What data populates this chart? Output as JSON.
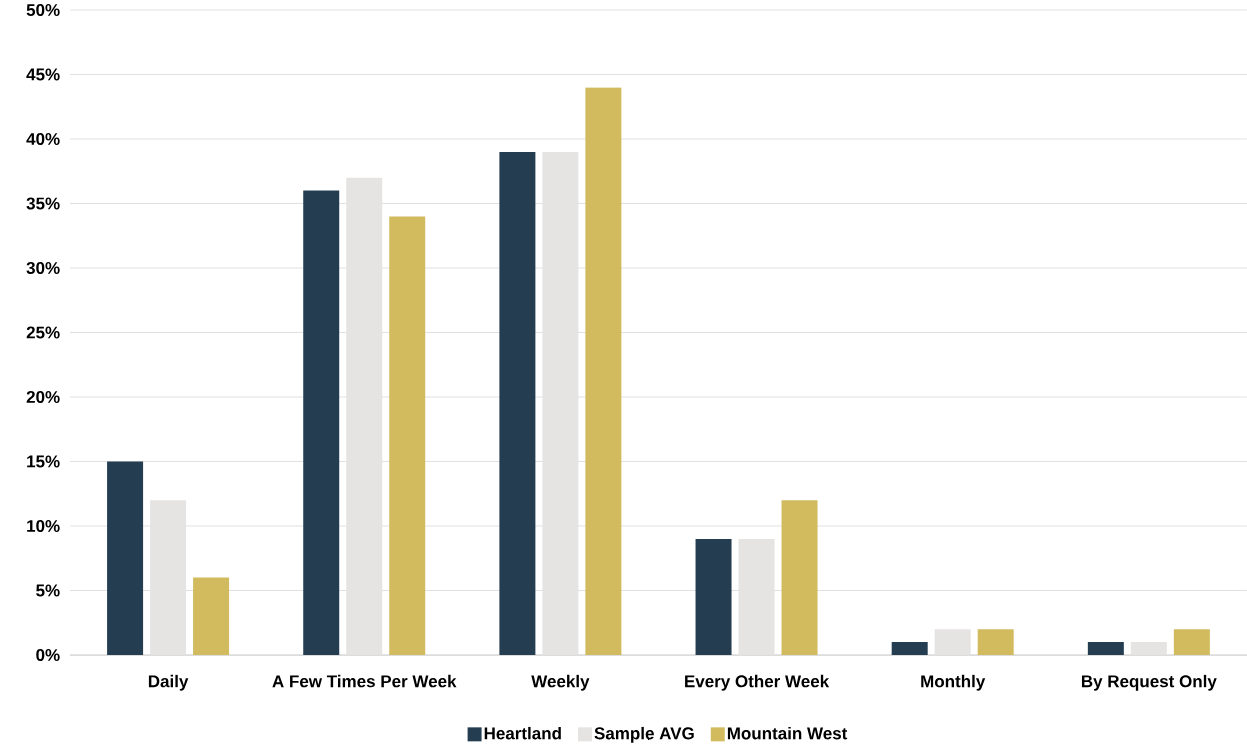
{
  "chart_data": {
    "type": "bar",
    "categories": [
      "Daily",
      "A Few Times Per Week",
      "Weekly",
      "Every Other Week",
      "Monthly",
      "By Request Only"
    ],
    "series": [
      {
        "name": "Heartland",
        "color": "#243d51",
        "values": [
          15,
          36,
          39,
          9,
          1,
          1
        ]
      },
      {
        "name": "Sample AVG",
        "color": "#e6e3e3",
        "values": [
          12,
          37,
          39,
          9,
          2,
          1
        ]
      },
      {
        "name": "Mountain West",
        "color": "#d1bb5e",
        "values": [
          6,
          34,
          44,
          12,
          2,
          2
        ]
      }
    ],
    "ylim": [
      0,
      50
    ],
    "yticks": [
      {
        "value": 0,
        "label": "0%"
      },
      {
        "value": 5,
        "label": "5%"
      },
      {
        "value": 10,
        "label": "10%"
      },
      {
        "value": 15,
        "label": "15%"
      },
      {
        "value": 20,
        "label": "20%"
      },
      {
        "value": 25,
        "label": "25%"
      },
      {
        "value": 30,
        "label": "30%"
      },
      {
        "value": 35,
        "label": "35%"
      },
      {
        "value": 40,
        "label": "40%"
      },
      {
        "value": 45,
        "label": "45%"
      },
      {
        "value": 50,
        "label": "50%"
      }
    ],
    "grid": "y",
    "legend": "bottom"
  }
}
